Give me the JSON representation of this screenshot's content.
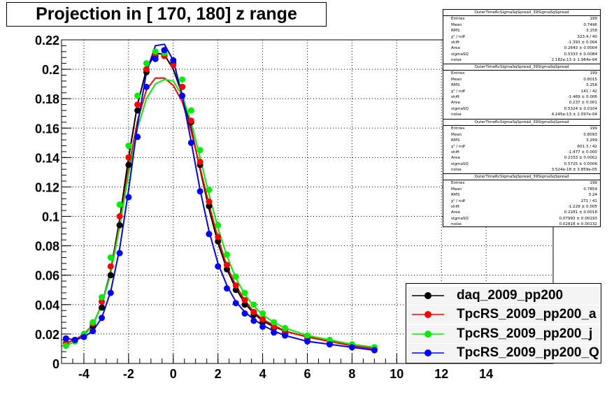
{
  "title": "Projection in [ 170, 180] z range",
  "chart_data": {
    "type": "scatter",
    "xlim": [
      -5,
      17
    ],
    "ylim": [
      0,
      0.22
    ],
    "x_ticks": [
      "-4",
      "-2",
      "0",
      "2",
      "4",
      "6",
      "8",
      "10",
      "12",
      "14"
    ],
    "x_tick_values": [
      -4,
      -2,
      0,
      2,
      4,
      6,
      8,
      10,
      12,
      14
    ],
    "y_ticks": [
      "0",
      "0.02",
      "0.04",
      "0.06",
      "0.08",
      "0.1",
      "0.12",
      "0.14",
      "0.16",
      "0.18",
      "0.2",
      "0.22"
    ],
    "y_tick_values": [
      0,
      0.02,
      0.04,
      0.06,
      0.08,
      0.1,
      0.12,
      0.14,
      0.16,
      0.18,
      0.2,
      0.22
    ],
    "grid": true,
    "legend_position": "bottom-right",
    "series": [
      {
        "name": "daq_2009_pp200",
        "color": "#000000",
        "x": [
          -4.8,
          -4.4,
          -4.0,
          -3.6,
          -3.2,
          -2.8,
          -2.4,
          -2.0,
          -1.6,
          -1.2,
          -0.8,
          -0.4,
          0.0,
          0.4,
          0.8,
          1.2,
          1.6,
          2.0,
          2.4,
          2.8,
          3.2,
          3.6,
          4.0,
          4.5,
          5.0,
          6.0,
          7.0,
          8.0,
          9.0
        ],
        "y": [
          0.014,
          0.016,
          0.019,
          0.025,
          0.038,
          0.06,
          0.094,
          0.135,
          0.172,
          0.198,
          0.209,
          0.21,
          0.204,
          0.188,
          0.164,
          0.135,
          0.107,
          0.083,
          0.064,
          0.05,
          0.04,
          0.033,
          0.028,
          0.024,
          0.021,
          0.017,
          0.014,
          0.012,
          0.01
        ],
        "fit": [
          0.014,
          0.016,
          0.02,
          0.026,
          0.04,
          0.063,
          0.098,
          0.14,
          0.176,
          0.2,
          0.211,
          0.21,
          0.2,
          0.183,
          0.16,
          0.132,
          0.105,
          0.082,
          0.064,
          0.051,
          0.041,
          0.034,
          0.029,
          0.025,
          0.022,
          0.018,
          0.015,
          0.012,
          0.01
        ]
      },
      {
        "name": "TpcRS_2009_pp200_a",
        "color": "#ff0000",
        "x": [
          -4.8,
          -4.4,
          -4.0,
          -3.6,
          -3.2,
          -2.8,
          -2.4,
          -2.0,
          -1.6,
          -1.2,
          -0.8,
          -0.4,
          0.0,
          0.4,
          0.8,
          1.2,
          1.6,
          2.0,
          2.4,
          2.8,
          3.2,
          3.6,
          4.0,
          4.5,
          5.0,
          6.0,
          7.0,
          8.0,
          9.0
        ],
        "y": [
          0.014,
          0.016,
          0.02,
          0.027,
          0.042,
          0.066,
          0.1,
          0.14,
          0.176,
          0.2,
          0.21,
          0.209,
          0.203,
          0.188,
          0.165,
          0.137,
          0.11,
          0.086,
          0.067,
          0.053,
          0.043,
          0.035,
          0.03,
          0.025,
          0.022,
          0.017,
          0.014,
          0.012,
          0.01
        ],
        "fit": [
          0.014,
          0.016,
          0.02,
          0.026,
          0.04,
          0.062,
          0.095,
          0.133,
          0.165,
          0.186,
          0.194,
          0.194,
          0.189,
          0.178,
          0.158,
          0.133,
          0.108,
          0.085,
          0.066,
          0.053,
          0.043,
          0.035,
          0.03,
          0.026,
          0.022,
          0.018,
          0.015,
          0.012,
          0.01
        ]
      },
      {
        "name": "TpcRS_2009_pp200_j",
        "color": "#00ee00",
        "x": [
          -4.8,
          -4.4,
          -4.0,
          -3.6,
          -3.2,
          -2.8,
          -2.4,
          -2.0,
          -1.6,
          -1.2,
          -0.8,
          -0.4,
          0.0,
          0.4,
          0.8,
          1.2,
          1.6,
          2.0,
          2.4,
          2.8,
          3.2,
          3.6,
          4.0,
          4.5,
          5.0,
          6.0,
          7.0,
          8.0,
          9.0
        ],
        "y": [
          0.012,
          0.015,
          0.02,
          0.028,
          0.045,
          0.072,
          0.108,
          0.148,
          0.182,
          0.204,
          0.212,
          0.211,
          0.206,
          0.193,
          0.172,
          0.145,
          0.118,
          0.094,
          0.074,
          0.059,
          0.048,
          0.04,
          0.034,
          0.028,
          0.024,
          0.019,
          0.016,
          0.013,
          0.011
        ],
        "fit": [
          0.012,
          0.015,
          0.019,
          0.026,
          0.04,
          0.061,
          0.093,
          0.129,
          0.16,
          0.18,
          0.19,
          0.193,
          0.192,
          0.182,
          0.164,
          0.14,
          0.115,
          0.092,
          0.073,
          0.058,
          0.047,
          0.039,
          0.033,
          0.028,
          0.024,
          0.019,
          0.016,
          0.013,
          0.011
        ]
      },
      {
        "name": "TpcRS_2009_pp200_Q",
        "color": "#0000ff",
        "x": [
          -4.8,
          -4.4,
          -4.0,
          -3.6,
          -3.2,
          -2.8,
          -2.4,
          -2.0,
          -1.6,
          -1.2,
          -0.8,
          -0.4,
          0.0,
          0.4,
          0.8,
          1.2,
          1.6,
          2.0,
          2.4,
          2.8,
          3.2,
          3.6,
          4.0,
          4.5,
          5.0,
          6.0,
          7.0,
          8.0,
          9.0
        ],
        "y": [
          0.017,
          0.016,
          0.018,
          0.022,
          0.031,
          0.048,
          0.075,
          0.113,
          0.154,
          0.188,
          0.207,
          0.213,
          0.206,
          0.182,
          0.15,
          0.117,
          0.088,
          0.066,
          0.051,
          0.041,
          0.034,
          0.029,
          0.025,
          0.021,
          0.019,
          0.015,
          0.013,
          0.011,
          0.009
        ],
        "fit": [
          0.017,
          0.016,
          0.018,
          0.022,
          0.031,
          0.049,
          0.078,
          0.118,
          0.162,
          0.198,
          0.216,
          0.217,
          0.206,
          0.182,
          0.151,
          0.118,
          0.09,
          0.068,
          0.053,
          0.042,
          0.035,
          0.03,
          0.026,
          0.022,
          0.019,
          0.015,
          0.013,
          0.011,
          0.009
        ]
      }
    ]
  },
  "stats_boxes": [
    {
      "header": "OuterTimeRcSigmaSqSpread_39SigmaSqSpread",
      "rows": [
        [
          "Entries",
          "199"
        ],
        [
          "Mean",
          "0.7496"
        ],
        [
          "RMS",
          "3.158"
        ],
        [
          "χ² / ndf",
          "323.4 / 40"
        ],
        [
          "shift",
          "-1.393 ± 0.004"
        ],
        [
          "Area",
          "0.2643 ± 0.0004"
        ],
        [
          "sigmaSQ",
          "0.5333 ± 0.0084"
        ],
        [
          "noise",
          "2.182e-13 ± 1.984e-04"
        ]
      ]
    },
    {
      "header": "OuterTimeRcSigmaSqSpread_39SigmaSqSpread",
      "rows": [
        [
          "Entries",
          "199"
        ],
        [
          "Mean",
          "0.8015"
        ],
        [
          "RMS",
          "3.256"
        ],
        [
          "χ² / ndf",
          "141 / 42"
        ],
        [
          "shift",
          "-1.469 ± 0.006"
        ],
        [
          "Area",
          "0.237 ± 0.001"
        ],
        [
          "sigmaSQ",
          "0.5324 ± 0.0104"
        ],
        [
          "noise",
          "4.245e-13 ± 2.097e-04"
        ]
      ]
    },
    {
      "header": "OuterTimeRcSigmaSqSpread_39SigmaSqSpread",
      "rows": [
        [
          "Entries",
          "199"
        ],
        [
          "Mean",
          "0.8093"
        ],
        [
          "RMS",
          "3.299"
        ],
        [
          "χ² / ndf",
          "601.3 / 42"
        ],
        [
          "shift",
          "-1.477 ± 0.000"
        ],
        [
          "Area",
          "0.2333 ± 0.0002"
        ],
        [
          "sigmaSQ",
          "0.5725 ± 0.0006"
        ],
        [
          "noise",
          "3.524e-18 ± 3.859e-05"
        ]
      ]
    },
    {
      "header": "OuterTimeRcSigmaSqSpread_39SigmaSqSpread",
      "rows": [
        [
          "Entries",
          "199"
        ],
        [
          "Mean",
          "0.7859"
        ],
        [
          "RMS",
          "3.24"
        ],
        [
          "χ² / ndf",
          "271 / 41"
        ],
        [
          "shift",
          "-1.229 ± 0.005"
        ],
        [
          "Area",
          "0.2281 ± 0.0018"
        ],
        [
          "sigmaSQ",
          "0.07993 ± 0.00193"
        ],
        [
          "noise",
          "0.02818 ± 0.00132"
        ]
      ]
    }
  ]
}
